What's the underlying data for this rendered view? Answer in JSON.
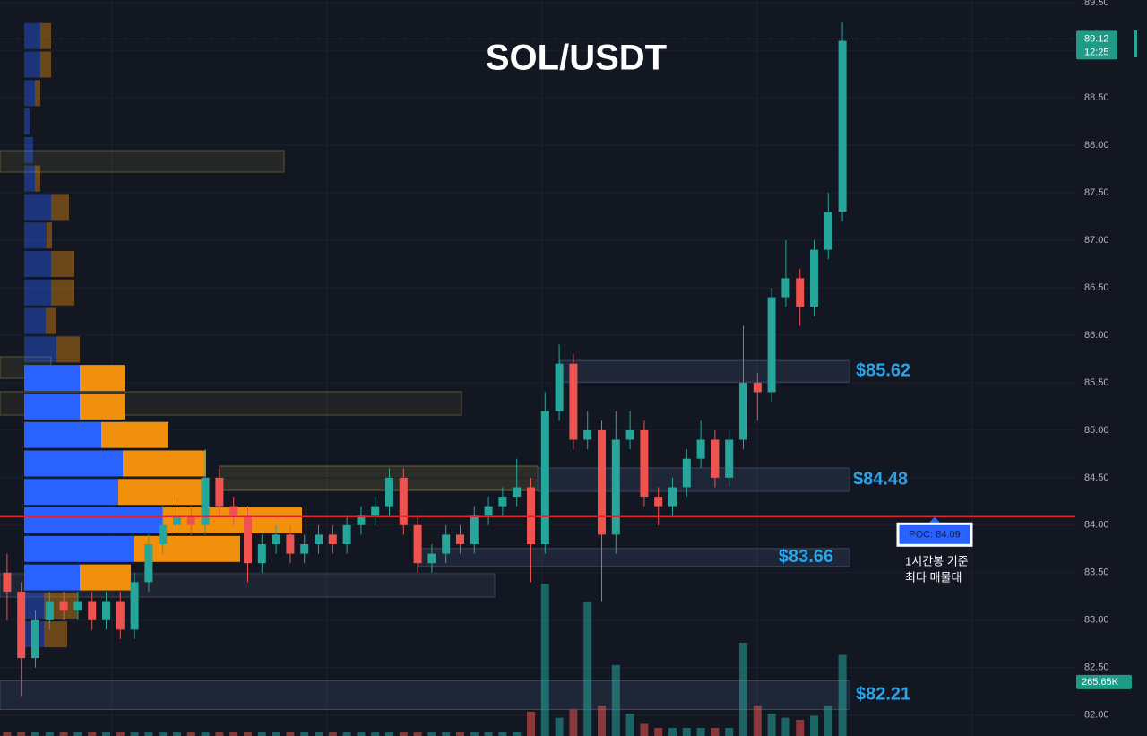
{
  "chart_data": {
    "type": "candlestick",
    "title": "SOL/USDT",
    "up_color": "#26a69a",
    "down_color": "#ef5350",
    "open": [
      83.5,
      83.3,
      82.6,
      83.0,
      83.2,
      83.1,
      83.2,
      83.0,
      83.2,
      82.9,
      83.4,
      83.8,
      84.0,
      84.1,
      84.0,
      84.5,
      84.2,
      84.1,
      83.6,
      83.8,
      83.9,
      83.7,
      83.8,
      83.9,
      83.8,
      84.0,
      84.1,
      84.2,
      84.5,
      84.0,
      83.6,
      83.7,
      83.9,
      83.8,
      84.1,
      84.2,
      84.3,
      84.4,
      83.8,
      85.2,
      85.7,
      84.9,
      85.0,
      83.9,
      84.9,
      85.0,
      84.3,
      84.2,
      84.4,
      84.7,
      84.9,
      84.5,
      84.9,
      85.5,
      85.4,
      86.4,
      86.6,
      86.3,
      86.9,
      87.3
    ],
    "high": [
      83.7,
      83.4,
      83.1,
      83.3,
      83.3,
      83.3,
      83.3,
      83.3,
      83.3,
      83.5,
      83.9,
      84.2,
      84.3,
      84.2,
      84.8,
      84.6,
      84.3,
      84.2,
      83.9,
      84.0,
      84.0,
      83.9,
      84.0,
      84.0,
      84.1,
      84.2,
      84.3,
      84.6,
      84.6,
      84.1,
      83.8,
      84.0,
      84.0,
      84.2,
      84.3,
      84.4,
      84.7,
      84.5,
      85.4,
      85.9,
      85.8,
      85.2,
      85.1,
      85.2,
      85.2,
      85.1,
      84.4,
      84.5,
      84.8,
      85.1,
      85.0,
      85.0,
      86.1,
      85.6,
      86.5,
      87.0,
      86.7,
      87.0,
      87.5,
      89.3
    ],
    "low": [
      83.0,
      82.2,
      82.5,
      82.9,
      83.0,
      83.0,
      82.9,
      82.9,
      82.8,
      82.8,
      83.3,
      83.7,
      83.9,
      83.9,
      83.9,
      84.1,
      84.0,
      83.4,
      83.5,
      83.7,
      83.6,
      83.6,
      83.7,
      83.7,
      83.7,
      83.9,
      84.0,
      84.1,
      83.9,
      83.5,
      83.5,
      83.6,
      83.7,
      83.7,
      84.0,
      84.1,
      84.2,
      83.4,
      83.7,
      85.1,
      84.8,
      84.8,
      83.2,
      83.7,
      84.8,
      84.2,
      84.0,
      84.1,
      84.3,
      84.6,
      84.4,
      84.4,
      84.8,
      85.1,
      85.3,
      86.3,
      86.1,
      86.2,
      86.8,
      87.2
    ],
    "close": [
      83.3,
      82.6,
      83.0,
      83.2,
      83.1,
      83.2,
      83.0,
      83.2,
      82.9,
      83.4,
      83.8,
      84.0,
      84.1,
      84.0,
      84.5,
      84.2,
      84.1,
      83.6,
      83.8,
      83.9,
      83.7,
      83.8,
      83.9,
      83.8,
      84.0,
      84.1,
      84.2,
      84.5,
      84.0,
      83.6,
      83.7,
      83.9,
      83.8,
      84.1,
      84.2,
      84.3,
      84.4,
      83.8,
      85.2,
      85.7,
      84.9,
      85.0,
      83.9,
      84.9,
      85.0,
      84.3,
      84.2,
      84.4,
      84.7,
      84.9,
      84.5,
      84.9,
      85.5,
      85.4,
      86.4,
      86.6,
      86.3,
      86.9,
      87.3,
      89.1
    ],
    "volume": [
      20000,
      20000,
      20000,
      20000,
      20000,
      20000,
      20000,
      20000,
      20000,
      20000,
      20000,
      20000,
      20000,
      20000,
      20000,
      20000,
      20000,
      20000,
      20000,
      20000,
      20000,
      20000,
      20000,
      20000,
      20000,
      20000,
      20000,
      20000,
      20000,
      20000,
      20000,
      20000,
      20000,
      20000,
      20000,
      20000,
      20000,
      120000,
      750000,
      90000,
      130000,
      660000,
      150000,
      350000,
      110000,
      60000,
      40000,
      40000,
      40000,
      40000,
      40000,
      40000,
      460000,
      150000,
      110000,
      90000,
      80000,
      100000,
      150000,
      400000
    ],
    "vlim": [
      0,
      3630000
    ],
    "volume_tag": {
      "value": 265650,
      "label": "265.65K"
    },
    "ylim": [
      81.78,
      89.53
    ],
    "yticks": [
      {
        "value": 82,
        "label": "82.00"
      },
      {
        "value": 82.5,
        "label": "82.50"
      },
      {
        "value": 83,
        "label": "83.00"
      },
      {
        "value": 83.5,
        "label": "83.50"
      },
      {
        "value": 84,
        "label": "84.00"
      },
      {
        "value": 84.5,
        "label": "84.50"
      },
      {
        "value": 85,
        "label": "85.00"
      },
      {
        "value": 85.5,
        "label": "85.50"
      },
      {
        "value": 86,
        "label": "86.00"
      },
      {
        "value": 86.5,
        "label": "86.50"
      },
      {
        "value": 87,
        "label": "87.00"
      },
      {
        "value": 87.5,
        "label": "87.50"
      },
      {
        "value": 88,
        "label": "88.00"
      },
      {
        "value": 88.5,
        "label": "88.50"
      },
      {
        "value": 89,
        "label": "89.00"
      },
      {
        "value": 89.5,
        "label": "89.50"
      }
    ],
    "price_tag": {
      "value": 89.12,
      "label": "89.12"
    },
    "countdown": "12:25",
    "levels": [
      {
        "value": 85.62,
        "label": "$85.62"
      },
      {
        "value": 84.48,
        "label": "$84.48"
      },
      {
        "value": 83.66,
        "label": "$83.66"
      },
      {
        "value": 82.21,
        "label": "$82.21"
      }
    ],
    "level_color": "#2aa3e8",
    "poc": {
      "value": 84.09,
      "label": "POC: 84.09"
    },
    "poc_color": "#e0242b",
    "annotation": [
      "1시간봉 기준",
      "최다 매물대"
    ],
    "volume_profile": {
      "prices": [
        89.15,
        88.85,
        88.55,
        88.25,
        87.95,
        87.65,
        87.35,
        87.05,
        86.75,
        86.45,
        86.15,
        85.85,
        85.55,
        85.25,
        84.95,
        84.65,
        84.35,
        84.05,
        83.75,
        83.45,
        83.15,
        82.85
      ],
      "buy": [
        18,
        18,
        12,
        6,
        10,
        12,
        30,
        25,
        30,
        30,
        24,
        36,
        62,
        62,
        86,
        110,
        105,
        155,
        123,
        62,
        22,
        22
      ],
      "sell": [
        12,
        12,
        6,
        0,
        0,
        6,
        20,
        6,
        26,
        26,
        12,
        26,
        50,
        50,
        75,
        93,
        100,
        155,
        118,
        57,
        38,
        26
      ],
      "buy_color": "#2962ff",
      "sell_color": "#f0900c",
      "value_area": [
        83.3,
        85.7
      ]
    }
  }
}
